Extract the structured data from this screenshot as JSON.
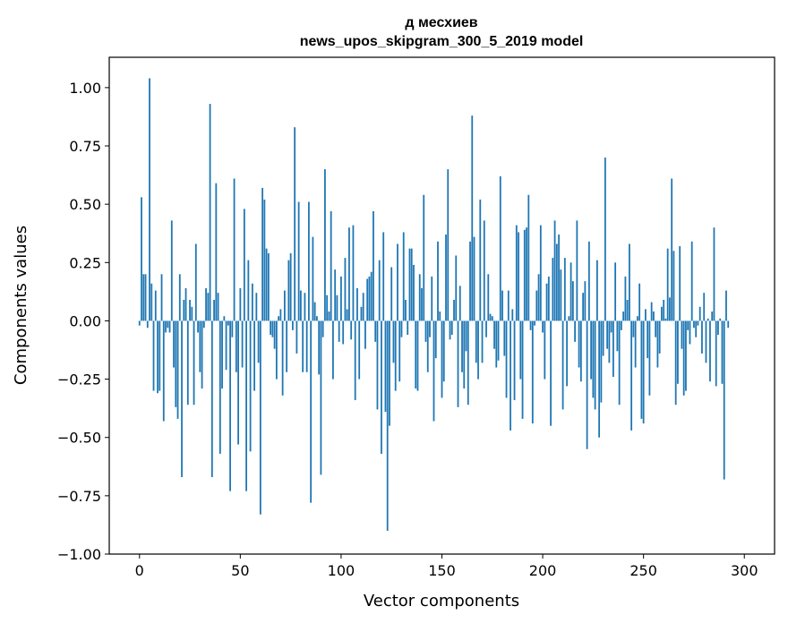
{
  "chart_data": {
    "type": "bar",
    "title_line1": "д месхиев",
    "title_line2": "news_upos_skipgram_300_5_2019 model",
    "xlabel": "Vector components",
    "ylabel": "Components values",
    "xlim": [
      -15,
      315
    ],
    "ylim": [
      -1.0,
      1.13
    ],
    "xticks": [
      0,
      50,
      100,
      150,
      200,
      250,
      300
    ],
    "xtick_labels": [
      "0",
      "50",
      "100",
      "150",
      "200",
      "250",
      "300"
    ],
    "yticks": [
      -1.0,
      -0.75,
      -0.5,
      -0.25,
      0.0,
      0.25,
      0.5,
      0.75,
      1.0
    ],
    "ytick_labels": [
      "−1.00",
      "−0.75",
      "−0.50",
      "−0.25",
      "0.00",
      "0.25",
      "0.50",
      "0.75",
      "1.00"
    ],
    "bar_color": "#1f77b4",
    "values": [
      -0.02,
      0.53,
      0.2,
      0.2,
      -0.03,
      1.04,
      0.16,
      -0.3,
      0.13,
      -0.31,
      -0.3,
      0.2,
      -0.43,
      -0.05,
      -0.03,
      -0.05,
      0.43,
      -0.2,
      -0.37,
      -0.42,
      0.2,
      -0.67,
      0.09,
      0.14,
      -0.36,
      0.09,
      0.06,
      -0.36,
      0.33,
      -0.05,
      -0.22,
      -0.29,
      -0.03,
      0.14,
      0.12,
      0.93,
      -0.67,
      0.09,
      0.59,
      0.12,
      -0.57,
      -0.29,
      0.02,
      -0.21,
      -0.02,
      -0.73,
      -0.07,
      0.61,
      -0.22,
      -0.53,
      0.14,
      -0.2,
      0.48,
      -0.73,
      0.26,
      -0.56,
      0.16,
      -0.3,
      0.12,
      -0.18,
      -0.83,
      0.57,
      0.52,
      0.31,
      0.29,
      -0.06,
      -0.07,
      -0.12,
      -0.25,
      0.02,
      0.05,
      -0.32,
      0.13,
      -0.22,
      0.26,
      0.29,
      -0.04,
      0.83,
      -0.14,
      0.51,
      0.13,
      -0.22,
      0.12,
      -0.22,
      0.51,
      -0.78,
      0.36,
      0.08,
      0.02,
      -0.23,
      -0.66,
      -0.07,
      0.65,
      0.11,
      0.04,
      0.47,
      -0.25,
      0.22,
      0.11,
      -0.09,
      0.19,
      -0.1,
      0.27,
      0.05,
      0.4,
      -0.08,
      0.41,
      -0.34,
      0.14,
      -0.25,
      0.06,
      0.12,
      -0.12,
      0.18,
      0.19,
      0.21,
      0.47,
      -0.09,
      -0.38,
      0.26,
      -0.57,
      0.38,
      -0.39,
      -0.9,
      -0.45,
      0.23,
      -0.18,
      -0.3,
      0.33,
      -0.26,
      -0.07,
      0.38,
      0.09,
      -0.06,
      0.31,
      0.31,
      0.24,
      -0.29,
      -0.3,
      0.2,
      0.14,
      0.54,
      -0.09,
      -0.22,
      -0.07,
      0.19,
      -0.43,
      -0.16,
      0.34,
      0.04,
      -0.33,
      -0.26,
      0.37,
      0.65,
      -0.08,
      -0.06,
      0.09,
      0.28,
      -0.37,
      0.15,
      -0.22,
      -0.29,
      -0.13,
      -0.36,
      0.34,
      0.88,
      0.36,
      -0.18,
      -0.25,
      0.52,
      -0.18,
      0.43,
      -0.07,
      0.2,
      0.03,
      0.02,
      -0.12,
      -0.2,
      -0.17,
      0.62,
      0.13,
      -0.15,
      -0.33,
      0.13,
      -0.47,
      0.05,
      -0.34,
      0.41,
      0.38,
      -0.25,
      -0.42,
      0.39,
      0.4,
      0.54,
      -0.04,
      -0.44,
      -0.02,
      0.13,
      0.2,
      0.41,
      -0.05,
      -0.25,
      0.16,
      0.19,
      -0.45,
      0.27,
      0.43,
      0.33,
      0.37,
      0.22,
      -0.38,
      0.27,
      -0.28,
      0.02,
      0.25,
      0.17,
      -0.09,
      0.43,
      -0.2,
      -0.26,
      0.12,
      0.17,
      -0.55,
      0.34,
      -0.25,
      -0.33,
      -0.38,
      0.26,
      -0.5,
      -0.35,
      -0.15,
      0.7,
      -0.12,
      -0.18,
      -0.05,
      -0.24,
      0.25,
      -0.13,
      -0.36,
      -0.04,
      0.04,
      0.19,
      0.09,
      0.33,
      -0.47,
      -0.07,
      -0.2,
      0.02,
      0.16,
      -0.42,
      -0.44,
      0.05,
      -0.16,
      -0.32,
      0.08,
      0.04,
      -0.07,
      -0.2,
      -0.14,
      0.06,
      0.09,
      0.01,
      0.31,
      0.1,
      0.61,
      0.3,
      -0.36,
      -0.27,
      0.32,
      -0.12,
      -0.32,
      -0.3,
      -0.04,
      -0.1,
      0.34,
      -0.03,
      -0.07,
      -0.02,
      0.06,
      -0.14,
      0.12,
      -0.18,
      0.01,
      -0.26,
      0.04,
      0.4,
      -0.28,
      -0.06,
      0.01,
      -0.27,
      -0.68,
      0.13,
      -0.03
    ]
  }
}
